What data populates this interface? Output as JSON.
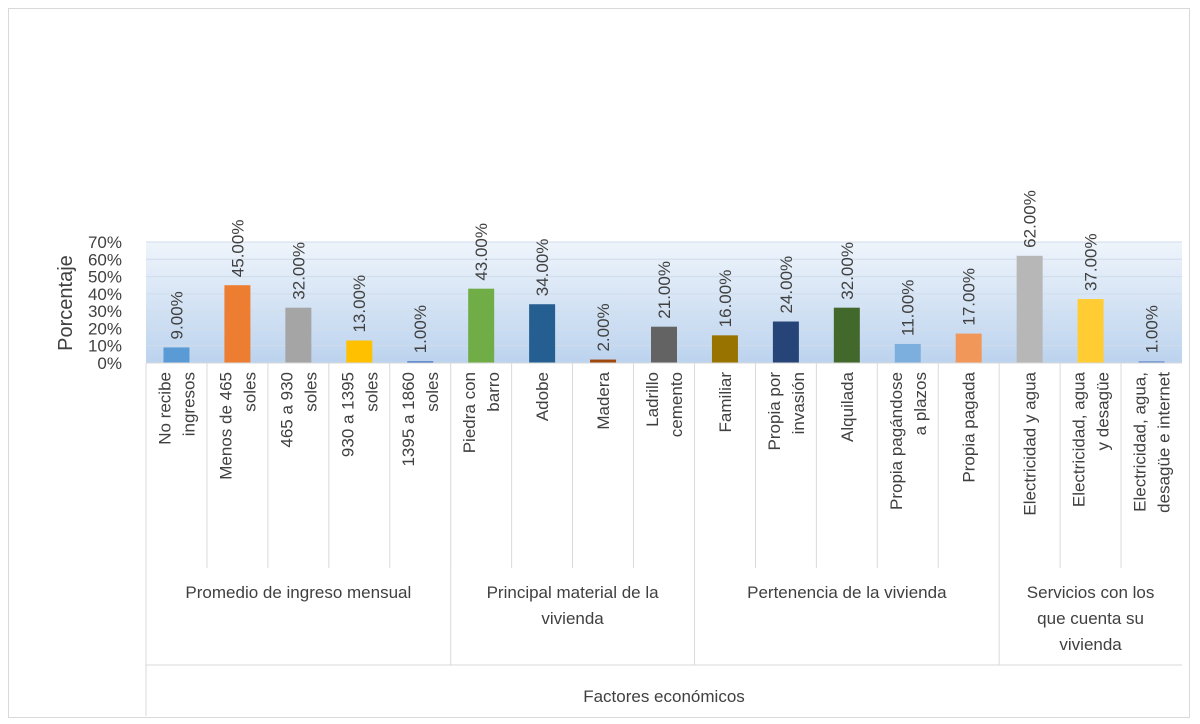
{
  "chart_data": {
    "type": "bar",
    "ylabel": "Porcentaje",
    "xlabel": "Factores económicos",
    "ylim": [
      0,
      70
    ],
    "yticks": [
      "0%",
      "10%",
      "20%",
      "30%",
      "40%",
      "50%",
      "60%",
      "70%"
    ],
    "grid": true,
    "legend": "none",
    "groups": [
      {
        "label": "Promedio de ingreso mensual",
        "label_lines": [
          "Promedio de ingreso mensual"
        ],
        "bars": [
          {
            "category": "No recibe ingresos",
            "lines": [
              "No recibe",
              "ingresos"
            ],
            "value": 9,
            "label": "9.00%",
            "color": "#5b9bd5"
          },
          {
            "category": "Menos de 465 soles",
            "lines": [
              "Menos de 465",
              "soles"
            ],
            "value": 45,
            "label": "45.00%",
            "color": "#ed7d31"
          },
          {
            "category": "465 a 930 soles",
            "lines": [
              "465 a 930",
              "soles"
            ],
            "value": 32,
            "label": "32.00%",
            "color": "#a5a5a5"
          },
          {
            "category": "930 a 1395 soles",
            "lines": [
              "930 a 1395",
              "soles"
            ],
            "value": 13,
            "label": "13.00%",
            "color": "#ffc000"
          },
          {
            "category": "1395 a 1860 soles",
            "lines": [
              "1395 a 1860",
              "soles"
            ],
            "value": 1,
            "label": "1.00%",
            "color": "#4472c4"
          }
        ]
      },
      {
        "label": "Principal material de la vivienda",
        "label_lines": [
          "Principal material de la",
          "vivienda"
        ],
        "bars": [
          {
            "category": "Piedra con barro",
            "lines": [
              "Piedra con",
              "barro"
            ],
            "value": 43,
            "label": "43.00%",
            "color": "#70ad47"
          },
          {
            "category": "Adobe",
            "lines": [
              "Adobe"
            ],
            "value": 34,
            "label": "34.00%",
            "color": "#255e91"
          },
          {
            "category": "Madera",
            "lines": [
              "Madera"
            ],
            "value": 2,
            "label": "2.00%",
            "color": "#9e480e"
          },
          {
            "category": "Ladrillo cemento",
            "lines": [
              "Ladrillo",
              "cemento"
            ],
            "value": 21,
            "label": "21.00%",
            "color": "#636363"
          }
        ]
      },
      {
        "label": "Pertenencia de la vivienda",
        "label_lines": [
          "Pertenencia de la vivienda"
        ],
        "bars": [
          {
            "category": "Familiar",
            "lines": [
              "Familiar"
            ],
            "value": 16,
            "label": "16.00%",
            "color": "#997300"
          },
          {
            "category": "Propia por invasión",
            "lines": [
              "Propia por",
              "invasión"
            ],
            "value": 24,
            "label": "24.00%",
            "color": "#264478"
          },
          {
            "category": "Alquilada",
            "lines": [
              "Alquilada"
            ],
            "value": 32,
            "label": "32.00%",
            "color": "#43682b"
          },
          {
            "category": "Propia pagándose a plazos",
            "lines": [
              "Propia pagándose",
              "a plazos"
            ],
            "value": 11,
            "label": "11.00%",
            "color": "#7cafdd"
          },
          {
            "category": "Propia pagada",
            "lines": [
              "Propia pagada"
            ],
            "value": 17,
            "label": "17.00%",
            "color": "#f1975a"
          }
        ]
      },
      {
        "label": "Servicios con los que cuenta su vivienda",
        "label_lines": [
          "Servicios con los",
          "que cuenta su",
          "vivienda"
        ],
        "bars": [
          {
            "category": "Electricidad y agua",
            "lines": [
              "Electricidad y agua"
            ],
            "value": 62,
            "label": "62.00%",
            "color": "#b7b7b7"
          },
          {
            "category": "Electricidad, agua y desagüe",
            "lines": [
              "Electricidad,  agua",
              "y desagüe"
            ],
            "value": 37,
            "label": "37.00%",
            "color": "#ffcd33"
          },
          {
            "category": "Electricidad, agua, desagüe e internet",
            "lines": [
              "Electricidad, agua,",
              "desagüe e internet"
            ],
            "value": 1,
            "label": "1.00%",
            "color": "#698ed0"
          }
        ]
      }
    ]
  }
}
